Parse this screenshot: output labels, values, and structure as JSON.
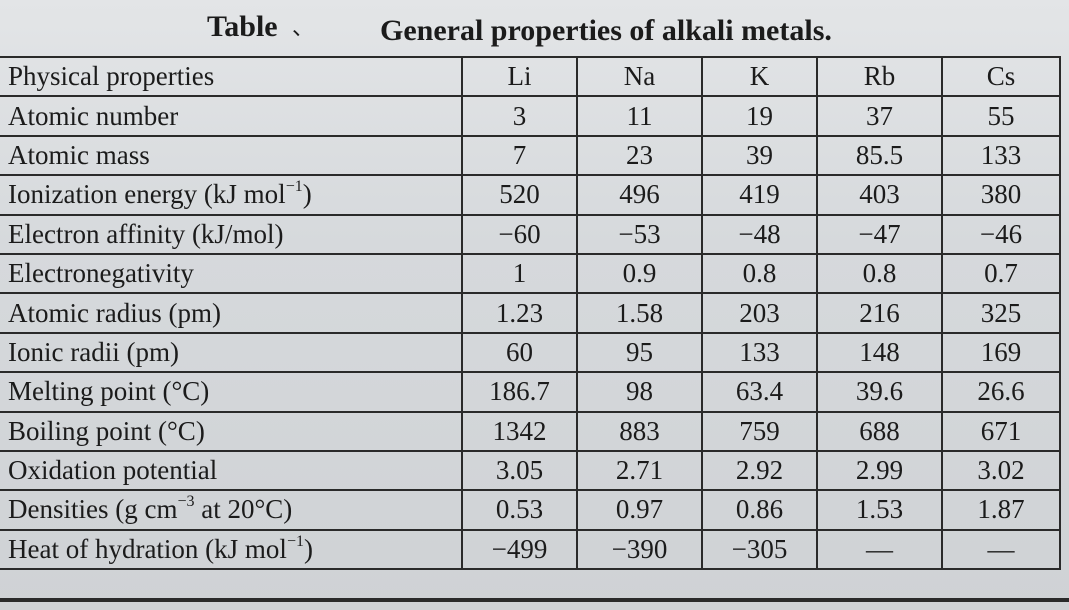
{
  "title": {
    "label": "Table",
    "mark": "、",
    "text": "General properties of alkali metals."
  },
  "table": {
    "header": {
      "property": "Physical properties",
      "elements": [
        "Li",
        "Na",
        "K",
        "Rb",
        "Cs"
      ]
    },
    "rows": [
      {
        "name": "Atomic number",
        "values": [
          "3",
          "11",
          "19",
          "37",
          "55"
        ]
      },
      {
        "name": "Atomic mass",
        "values": [
          "7",
          "23",
          "39",
          "85.5",
          "133"
        ]
      },
      {
        "name_parts": {
          "pre": "Ionization energy (kJ mol",
          "sup": "−1",
          "post": ")"
        },
        "values": [
          "520",
          "496",
          "419",
          "403",
          "380"
        ]
      },
      {
        "name": "Electron affinity (kJ/mol)",
        "values": [
          "−60",
          "−53",
          "−48",
          "−47",
          "−46"
        ]
      },
      {
        "name": "Electronegativity",
        "values": [
          "1",
          "0.9",
          "0.8",
          "0.8",
          "0.7"
        ]
      },
      {
        "name": "Atomic radius (pm)",
        "values": [
          "1.23",
          "1.58",
          "203",
          "216",
          "325"
        ]
      },
      {
        "name": "Ionic radii (pm)",
        "values": [
          "60",
          "95",
          "133",
          "148",
          "169"
        ]
      },
      {
        "name": "Melting point (°C)",
        "values": [
          "186.7",
          "98",
          "63.4",
          "39.6",
          "26.6"
        ]
      },
      {
        "name": "Boiling point (°C)",
        "values": [
          "1342",
          "883",
          "759",
          "688",
          "671"
        ]
      },
      {
        "name": "Oxidation potential",
        "values": [
          "3.05",
          "2.71",
          "2.92",
          "2.99",
          "3.02"
        ]
      },
      {
        "name_parts": {
          "pre": "Densities (g cm",
          "sup": "−3",
          "post": " at 20°C)"
        },
        "values": [
          "0.53",
          "0.97",
          "0.86",
          "1.53",
          "1.87"
        ]
      },
      {
        "name_parts": {
          "pre": "Heat of hydration (kJ mol",
          "sup": "−1",
          "post": ")"
        },
        "values": [
          "−499",
          "−390",
          "−305",
          "—",
          "—"
        ]
      }
    ]
  }
}
